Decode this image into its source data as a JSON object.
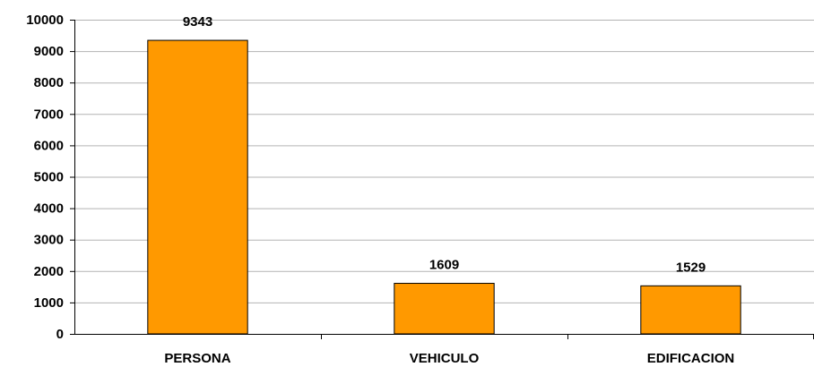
{
  "chart_data": {
    "type": "bar",
    "categories": [
      "PERSONA",
      "VEHICULO",
      "EDIFICACION"
    ],
    "values": [
      9343,
      1609,
      1529
    ],
    "ylim": [
      0,
      10000
    ],
    "yticks": [
      "0",
      "1000",
      "2000",
      "3000",
      "4000",
      "5000",
      "6000",
      "7000",
      "8000",
      "9000",
      "10000"
    ],
    "data_labels": [
      "9343",
      "1609",
      "1529"
    ],
    "grid": true,
    "legend": "none",
    "colors": {
      "bar": "#FF9900",
      "bar_border": "#000000",
      "grid": "#B3B3B3"
    }
  }
}
